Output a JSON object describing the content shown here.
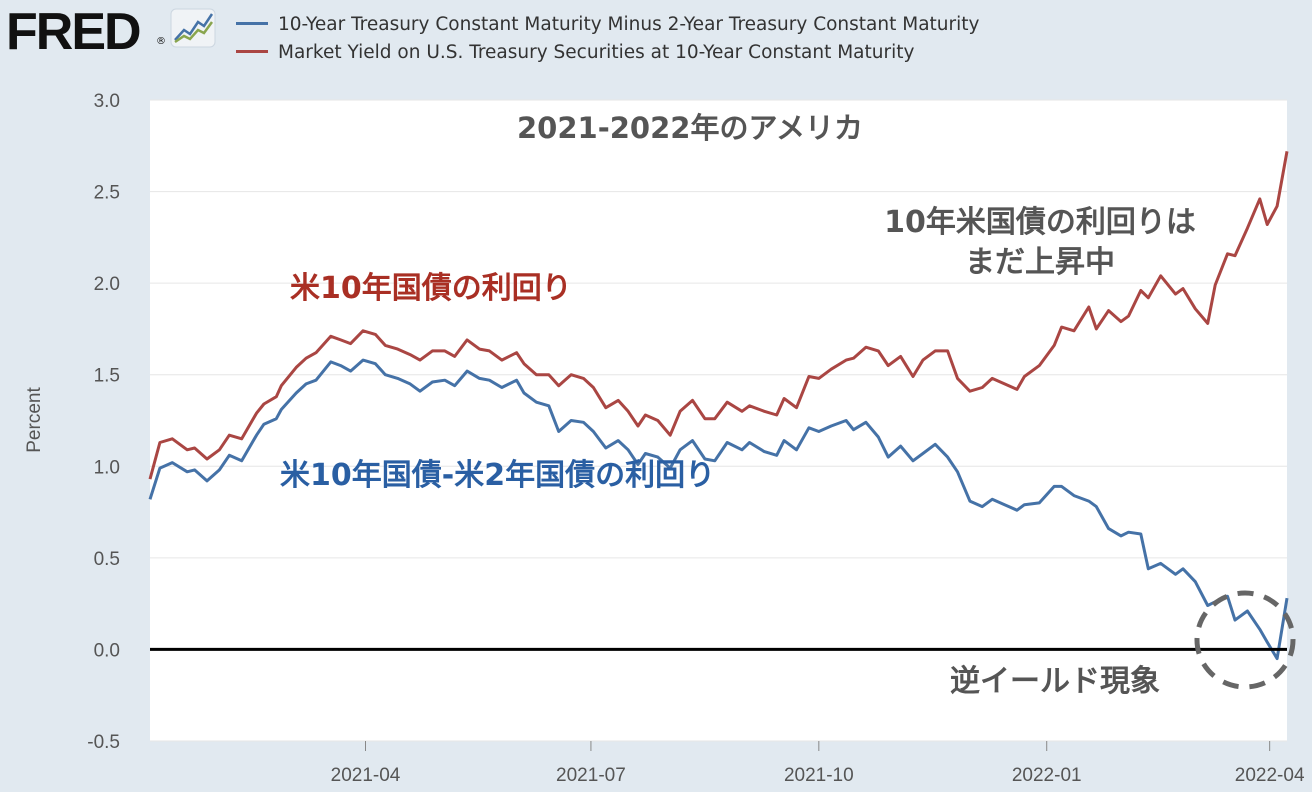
{
  "header": {
    "logo": "FRED",
    "logo_mark": "®"
  },
  "legend": [
    {
      "label": "10-Year Treasury Constant Maturity Minus 2-Year Treasury Constant Maturity",
      "color": "#4572a7"
    },
    {
      "label": "Market Yield on U.S. Treasury Securities at 10-Year Constant Maturity",
      "color": "#aa4643"
    }
  ],
  "annotations": {
    "title": "2021-2022年のアメリカ",
    "us10_label": "米10年国債の利回り",
    "spread_label": "米10年国債-米2年国債の利回り",
    "still_rising_line1": "10年米国債の利回りは",
    "still_rising_line2": "まだ上昇中",
    "inversion": "逆イールド現象"
  },
  "chart_data": {
    "type": "line",
    "ylabel": "Percent",
    "ylim": [
      -0.5,
      3.0
    ],
    "yticks": [
      -0.5,
      0.0,
      0.5,
      1.0,
      1.5,
      2.0,
      2.5,
      3.0
    ],
    "ytick_labels": [
      "-0.5",
      "0.0",
      "0.5",
      "1.0",
      "1.5",
      "2.0",
      "2.5",
      "3.0"
    ],
    "xlim": [
      "2021-01-04",
      "2022-04-08"
    ],
    "xticks": [
      "2021-04-01",
      "2021-07-01",
      "2021-10-01",
      "2022-01-01",
      "2022-04-01"
    ],
    "xtick_labels": [
      "2021-04",
      "2021-07",
      "2021-10",
      "2022-01",
      "2022-04"
    ],
    "grid": "horizontal",
    "series": [
      {
        "name": "Market Yield on U.S. Treasury Securities at 10-Year Constant Maturity",
        "color": "#aa4643",
        "points": [
          [
            "2021-01-04",
            0.93
          ],
          [
            "2021-01-08",
            1.13
          ],
          [
            "2021-01-13",
            1.15
          ],
          [
            "2021-01-19",
            1.09
          ],
          [
            "2021-01-22",
            1.1
          ],
          [
            "2021-01-27",
            1.04
          ],
          [
            "2021-02-01",
            1.09
          ],
          [
            "2021-02-05",
            1.17
          ],
          [
            "2021-02-10",
            1.15
          ],
          [
            "2021-02-16",
            1.29
          ],
          [
            "2021-02-19",
            1.34
          ],
          [
            "2021-02-24",
            1.38
          ],
          [
            "2021-02-26",
            1.44
          ],
          [
            "2021-03-04",
            1.54
          ],
          [
            "2021-03-08",
            1.59
          ],
          [
            "2021-03-12",
            1.62
          ],
          [
            "2021-03-18",
            1.71
          ],
          [
            "2021-03-22",
            1.69
          ],
          [
            "2021-03-26",
            1.67
          ],
          [
            "2021-03-31",
            1.74
          ],
          [
            "2021-04-05",
            1.72
          ],
          [
            "2021-04-09",
            1.66
          ],
          [
            "2021-04-14",
            1.64
          ],
          [
            "2021-04-19",
            1.61
          ],
          [
            "2021-04-23",
            1.58
          ],
          [
            "2021-04-28",
            1.63
          ],
          [
            "2021-05-03",
            1.63
          ],
          [
            "2021-05-07",
            1.6
          ],
          [
            "2021-05-12",
            1.69
          ],
          [
            "2021-05-17",
            1.64
          ],
          [
            "2021-05-21",
            1.63
          ],
          [
            "2021-05-26",
            1.58
          ],
          [
            "2021-06-01",
            1.62
          ],
          [
            "2021-06-04",
            1.56
          ],
          [
            "2021-06-09",
            1.5
          ],
          [
            "2021-06-14",
            1.5
          ],
          [
            "2021-06-18",
            1.44
          ],
          [
            "2021-06-23",
            1.5
          ],
          [
            "2021-06-28",
            1.48
          ],
          [
            "2021-07-02",
            1.43
          ],
          [
            "2021-07-07",
            1.32
          ],
          [
            "2021-07-12",
            1.36
          ],
          [
            "2021-07-16",
            1.3
          ],
          [
            "2021-07-20",
            1.22
          ],
          [
            "2021-07-23",
            1.28
          ],
          [
            "2021-07-28",
            1.25
          ],
          [
            "2021-08-02",
            1.17
          ],
          [
            "2021-08-06",
            1.3
          ],
          [
            "2021-08-11",
            1.36
          ],
          [
            "2021-08-16",
            1.26
          ],
          [
            "2021-08-20",
            1.26
          ],
          [
            "2021-08-25",
            1.35
          ],
          [
            "2021-08-31",
            1.3
          ],
          [
            "2021-09-03",
            1.33
          ],
          [
            "2021-09-09",
            1.3
          ],
          [
            "2021-09-14",
            1.28
          ],
          [
            "2021-09-17",
            1.37
          ],
          [
            "2021-09-22",
            1.32
          ],
          [
            "2021-09-27",
            1.49
          ],
          [
            "2021-10-01",
            1.48
          ],
          [
            "2021-10-06",
            1.53
          ],
          [
            "2021-10-12",
            1.58
          ],
          [
            "2021-10-15",
            1.59
          ],
          [
            "2021-10-20",
            1.65
          ],
          [
            "2021-10-25",
            1.63
          ],
          [
            "2021-10-29",
            1.55
          ],
          [
            "2021-11-03",
            1.6
          ],
          [
            "2021-11-08",
            1.49
          ],
          [
            "2021-11-12",
            1.58
          ],
          [
            "2021-11-17",
            1.63
          ],
          [
            "2021-11-22",
            1.63
          ],
          [
            "2021-11-26",
            1.48
          ],
          [
            "2021-12-01",
            1.41
          ],
          [
            "2021-12-06",
            1.43
          ],
          [
            "2021-12-10",
            1.48
          ],
          [
            "2021-12-15",
            1.45
          ],
          [
            "2021-12-20",
            1.42
          ],
          [
            "2021-12-23",
            1.49
          ],
          [
            "2021-12-29",
            1.55
          ],
          [
            "2022-01-04",
            1.66
          ],
          [
            "2022-01-07",
            1.76
          ],
          [
            "2022-01-12",
            1.74
          ],
          [
            "2022-01-18",
            1.87
          ],
          [
            "2022-01-21",
            1.75
          ],
          [
            "2022-01-26",
            1.85
          ],
          [
            "2022-01-31",
            1.79
          ],
          [
            "2022-02-03",
            1.82
          ],
          [
            "2022-02-08",
            1.96
          ],
          [
            "2022-02-11",
            1.92
          ],
          [
            "2022-02-16",
            2.04
          ],
          [
            "2022-02-22",
            1.94
          ],
          [
            "2022-02-25",
            1.97
          ],
          [
            "2022-03-02",
            1.86
          ],
          [
            "2022-03-07",
            1.78
          ],
          [
            "2022-03-10",
            1.99
          ],
          [
            "2022-03-15",
            2.16
          ],
          [
            "2022-03-18",
            2.15
          ],
          [
            "2022-03-23",
            2.3
          ],
          [
            "2022-03-28",
            2.46
          ],
          [
            "2022-03-31",
            2.32
          ],
          [
            "2022-04-04",
            2.42
          ],
          [
            "2022-04-08",
            2.72
          ]
        ]
      },
      {
        "name": "10-Year Treasury Constant Maturity Minus 2-Year Treasury Constant Maturity",
        "color": "#4572a7",
        "points": [
          [
            "2021-01-04",
            0.82
          ],
          [
            "2021-01-08",
            0.99
          ],
          [
            "2021-01-13",
            1.02
          ],
          [
            "2021-01-19",
            0.97
          ],
          [
            "2021-01-22",
            0.98
          ],
          [
            "2021-01-27",
            0.92
          ],
          [
            "2021-02-01",
            0.98
          ],
          [
            "2021-02-05",
            1.06
          ],
          [
            "2021-02-10",
            1.03
          ],
          [
            "2021-02-16",
            1.17
          ],
          [
            "2021-02-19",
            1.23
          ],
          [
            "2021-02-24",
            1.26
          ],
          [
            "2021-02-26",
            1.31
          ],
          [
            "2021-03-04",
            1.4
          ],
          [
            "2021-03-08",
            1.45
          ],
          [
            "2021-03-12",
            1.47
          ],
          [
            "2021-03-18",
            1.57
          ],
          [
            "2021-03-22",
            1.55
          ],
          [
            "2021-03-26",
            1.52
          ],
          [
            "2021-03-31",
            1.58
          ],
          [
            "2021-04-05",
            1.56
          ],
          [
            "2021-04-09",
            1.5
          ],
          [
            "2021-04-14",
            1.48
          ],
          [
            "2021-04-19",
            1.45
          ],
          [
            "2021-04-23",
            1.41
          ],
          [
            "2021-04-28",
            1.46
          ],
          [
            "2021-05-03",
            1.47
          ],
          [
            "2021-05-07",
            1.44
          ],
          [
            "2021-05-12",
            1.52
          ],
          [
            "2021-05-17",
            1.48
          ],
          [
            "2021-05-21",
            1.47
          ],
          [
            "2021-05-26",
            1.43
          ],
          [
            "2021-06-01",
            1.47
          ],
          [
            "2021-06-04",
            1.4
          ],
          [
            "2021-06-09",
            1.35
          ],
          [
            "2021-06-14",
            1.33
          ],
          [
            "2021-06-18",
            1.19
          ],
          [
            "2021-06-23",
            1.25
          ],
          [
            "2021-06-28",
            1.24
          ],
          [
            "2021-07-02",
            1.19
          ],
          [
            "2021-07-07",
            1.1
          ],
          [
            "2021-07-12",
            1.14
          ],
          [
            "2021-07-16",
            1.09
          ],
          [
            "2021-07-20",
            1.01
          ],
          [
            "2021-07-23",
            1.07
          ],
          [
            "2021-07-28",
            1.05
          ],
          [
            "2021-08-02",
            0.99
          ],
          [
            "2021-08-06",
            1.09
          ],
          [
            "2021-08-11",
            1.14
          ],
          [
            "2021-08-16",
            1.04
          ],
          [
            "2021-08-20",
            1.03
          ],
          [
            "2021-08-25",
            1.13
          ],
          [
            "2021-08-31",
            1.09
          ],
          [
            "2021-09-03",
            1.13
          ],
          [
            "2021-09-09",
            1.08
          ],
          [
            "2021-09-14",
            1.06
          ],
          [
            "2021-09-17",
            1.14
          ],
          [
            "2021-09-22",
            1.09
          ],
          [
            "2021-09-27",
            1.21
          ],
          [
            "2021-10-01",
            1.19
          ],
          [
            "2021-10-06",
            1.22
          ],
          [
            "2021-10-12",
            1.25
          ],
          [
            "2021-10-15",
            1.2
          ],
          [
            "2021-10-20",
            1.24
          ],
          [
            "2021-10-25",
            1.16
          ],
          [
            "2021-10-29",
            1.05
          ],
          [
            "2021-11-03",
            1.11
          ],
          [
            "2021-11-08",
            1.03
          ],
          [
            "2021-11-12",
            1.07
          ],
          [
            "2021-11-17",
            1.12
          ],
          [
            "2021-11-22",
            1.05
          ],
          [
            "2021-11-26",
            0.97
          ],
          [
            "2021-12-01",
            0.81
          ],
          [
            "2021-12-06",
            0.78
          ],
          [
            "2021-12-10",
            0.82
          ],
          [
            "2021-12-15",
            0.79
          ],
          [
            "2021-12-20",
            0.76
          ],
          [
            "2021-12-23",
            0.79
          ],
          [
            "2021-12-29",
            0.8
          ],
          [
            "2022-01-04",
            0.89
          ],
          [
            "2022-01-07",
            0.89
          ],
          [
            "2022-01-12",
            0.84
          ],
          [
            "2022-01-18",
            0.81
          ],
          [
            "2022-01-21",
            0.78
          ],
          [
            "2022-01-26",
            0.66
          ],
          [
            "2022-01-31",
            0.62
          ],
          [
            "2022-02-03",
            0.64
          ],
          [
            "2022-02-08",
            0.63
          ],
          [
            "2022-02-11",
            0.44
          ],
          [
            "2022-02-16",
            0.47
          ],
          [
            "2022-02-22",
            0.41
          ],
          [
            "2022-02-25",
            0.44
          ],
          [
            "2022-03-02",
            0.37
          ],
          [
            "2022-03-07",
            0.24
          ],
          [
            "2022-03-10",
            0.26
          ],
          [
            "2022-03-15",
            0.29
          ],
          [
            "2022-03-18",
            0.16
          ],
          [
            "2022-03-23",
            0.21
          ],
          [
            "2022-03-28",
            0.11
          ],
          [
            "2022-03-31",
            0.04
          ],
          [
            "2022-04-04",
            -0.05
          ],
          [
            "2022-04-08",
            0.28
          ]
        ]
      }
    ]
  }
}
